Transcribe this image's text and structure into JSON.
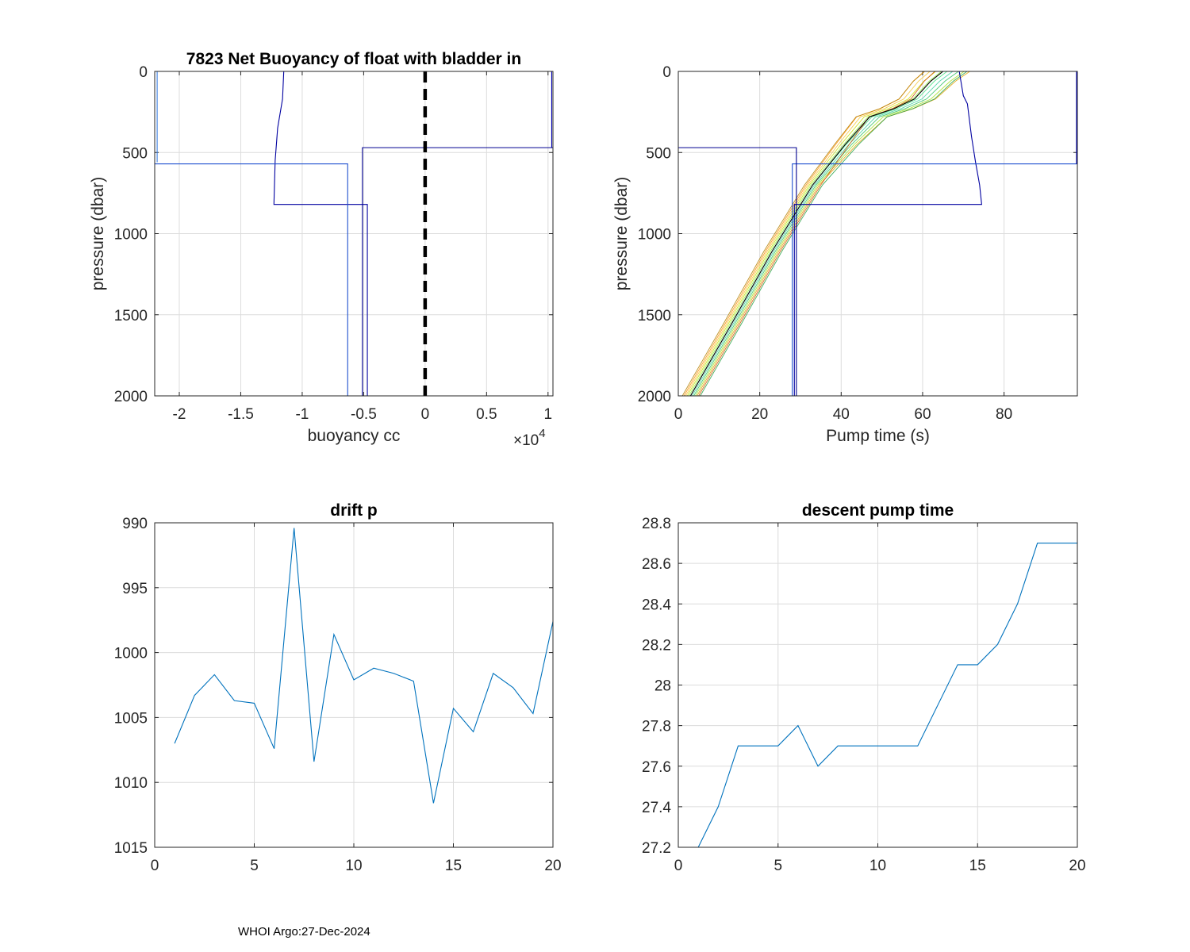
{
  "footer_text": "WHOI Argo:27-Dec-2024",
  "chart_data": [
    {
      "type": "line",
      "title": "7823 Net Buoyancy of float with bladder in",
      "xlabel": "buoyancy cc",
      "ylabel": "pressure (dbar)",
      "x_exponent_label": "×10",
      "x_exponent": "4",
      "xlim": [
        -2.2,
        1.04
      ],
      "ylim": [
        0,
        2000
      ],
      "y_reversed": true,
      "grid": true,
      "xticks": [
        -2,
        -1.5,
        -1,
        -0.5,
        0,
        0.5,
        1
      ],
      "xtick_labels": [
        "-2",
        "-1.5",
        "-1",
        "-0.5",
        "0",
        "0.5",
        "1"
      ],
      "yticks": [
        0,
        500,
        1000,
        1500,
        2000
      ],
      "ytick_labels": [
        "0",
        "500",
        "1000",
        "1500",
        "2000"
      ],
      "series": [
        {
          "color": "#0000a0",
          "x": [
            -1.15,
            -1.16,
            -1.2,
            -1.22,
            -1.23,
            -0.47,
            -0.47
          ],
          "y": [
            0,
            170,
            350,
            550,
            820,
            820,
            2000
          ]
        },
        {
          "color": "#1f4fcf",
          "x": [
            -2.2,
            -0.63,
            -0.63
          ],
          "y": [
            570,
            570,
            2000
          ]
        },
        {
          "color": "#000090",
          "x": [
            1.04,
            -0.51,
            -0.51
          ],
          "y": [
            470,
            470,
            2000
          ]
        },
        {
          "color": "#3a7fe0",
          "x": [
            -2.18,
            -2.18
          ],
          "y": [
            0,
            560
          ]
        },
        {
          "color": "#0000b0",
          "x": [
            1.03,
            1.03
          ],
          "y": [
            0,
            470
          ]
        },
        {
          "color": "#000000",
          "x": [
            0,
            0
          ],
          "y": [
            0,
            2000
          ],
          "dashed": true
        }
      ]
    },
    {
      "type": "line",
      "title": "",
      "xlabel": "Pump time (s)",
      "ylabel": "pressure (dbar)",
      "xlim": [
        0,
        98
      ],
      "ylim": [
        0,
        2000
      ],
      "y_reversed": true,
      "grid": true,
      "xticks": [
        0,
        20,
        40,
        60,
        80
      ],
      "xtick_labels": [
        "0",
        "20",
        "40",
        "60",
        "80"
      ],
      "yticks": [
        0,
        500,
        1000,
        1500,
        2000
      ],
      "ytick_labels": [
        "0",
        "500",
        "1000",
        "1500",
        "2000"
      ],
      "bundle": {
        "x": [
          3,
          13,
          23,
          33,
          41,
          47,
          53,
          58,
          62,
          65
        ],
        "y": [
          2000,
          1560,
          1110,
          700,
          450,
          280,
          230,
          170,
          60,
          0
        ],
        "colors": [
          "#ff8c00",
          "#f4c430",
          "#c8e000",
          "#90ee40",
          "#40e080",
          "#40d0a0",
          "#30c060",
          "#a0e020",
          "#e0a000",
          "#d05000",
          "#b08000",
          "#20a040"
        ],
        "offsets": [
          -1.6,
          -1.2,
          -0.8,
          -0.4,
          0,
          0.4,
          0.8,
          1.2,
          1.6,
          2.0,
          -2.0,
          2.4
        ],
        "top_spread": [
          -3,
          -2,
          -1,
          0,
          1,
          2,
          3,
          4,
          5,
          -4,
          -2.5,
          3.5
        ]
      },
      "series": [
        {
          "color": "#0000a0",
          "x": [
            69,
            70,
            71,
            72,
            73,
            74,
            74.5,
            74.5,
            28.5,
            28.5
          ],
          "y": [
            0,
            150,
            200,
            400,
            560,
            700,
            820,
            820,
            820,
            2000
          ]
        },
        {
          "color": "#1f4fcf",
          "x": [
            98,
            28,
            28
          ],
          "y": [
            570,
            570,
            2000
          ]
        },
        {
          "color": "#000090",
          "x": [
            0,
            29,
            29
          ],
          "y": [
            470,
            470,
            2000
          ]
        },
        {
          "color": "#000000",
          "x": [
            3,
            13,
            23,
            33,
            41,
            47,
            53,
            58,
            62,
            65
          ],
          "y": [
            2000,
            1560,
            1110,
            700,
            450,
            280,
            230,
            170,
            60,
            0
          ]
        },
        {
          "color": "#0000b0",
          "x": [
            97.8,
            97.8
          ],
          "y": [
            0,
            570
          ]
        }
      ]
    },
    {
      "type": "line",
      "title": "drift p",
      "xlabel": "",
      "ylabel": "",
      "xlim": [
        0,
        20
      ],
      "ylim": [
        990,
        1015
      ],
      "y_reversed": true,
      "grid": true,
      "xticks": [
        0,
        5,
        10,
        15,
        20
      ],
      "xtick_labels": [
        "0",
        "5",
        "10",
        "15",
        "20"
      ],
      "yticks": [
        990,
        995,
        1000,
        1005,
        1010,
        1015
      ],
      "ytick_labels": [
        "990",
        "995",
        "1000",
        "1005",
        "1010",
        "1015"
      ],
      "series": [
        {
          "color": "#0072bd",
          "x": [
            1,
            2,
            3,
            4,
            5,
            6,
            7,
            8,
            9,
            10,
            11,
            12,
            13,
            14,
            15,
            16,
            17,
            18,
            19,
            20
          ],
          "y": [
            1007,
            1003.3,
            1001.7,
            1003.7,
            1003.9,
            1007.4,
            990.4,
            1008.4,
            998.6,
            1002.1,
            1001.2,
            1001.6,
            1002.2,
            1011.6,
            1004.3,
            1006.1,
            1001.6,
            1002.7,
            1004.7,
            997.6
          ]
        }
      ]
    },
    {
      "type": "line",
      "title": "descent pump time",
      "xlabel": "",
      "ylabel": "",
      "xlim": [
        0,
        20
      ],
      "ylim": [
        27.2,
        28.8
      ],
      "y_reversed": false,
      "grid": true,
      "xticks": [
        0,
        5,
        10,
        15,
        20
      ],
      "xtick_labels": [
        "0",
        "5",
        "10",
        "15",
        "20"
      ],
      "yticks": [
        27.2,
        27.4,
        27.6,
        27.8,
        28,
        28.2,
        28.4,
        28.6,
        28.8
      ],
      "ytick_labels": [
        "27.2",
        "27.4",
        "27.6",
        "27.8",
        "28",
        "28.2",
        "28.4",
        "28.6",
        "28.8"
      ],
      "series": [
        {
          "color": "#0072bd",
          "x": [
            1,
            2,
            3,
            4,
            5,
            6,
            7,
            8,
            9,
            10,
            11,
            12,
            13,
            14,
            15,
            16,
            17,
            18,
            19,
            20
          ],
          "y": [
            27.2,
            27.4,
            27.7,
            27.7,
            27.7,
            27.8,
            27.6,
            27.7,
            27.7,
            27.7,
            27.7,
            27.7,
            27.9,
            28.1,
            28.1,
            28.2,
            28.4,
            28.7,
            28.7,
            28.7
          ]
        }
      ]
    }
  ]
}
